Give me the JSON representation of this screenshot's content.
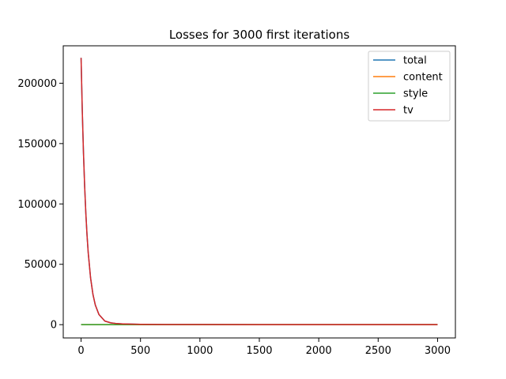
{
  "chart_data": {
    "type": "line",
    "title": "Losses for 3000 first iterations",
    "xlabel": "",
    "ylabel": "",
    "xlim": [
      -150,
      3150
    ],
    "ylim": [
      -11000,
      231000
    ],
    "x_ticks": [
      0,
      500,
      1000,
      1500,
      2000,
      2500,
      3000
    ],
    "y_ticks": [
      0,
      50000,
      100000,
      150000,
      200000
    ],
    "legend_position": "top-right",
    "grid": false,
    "series": [
      {
        "name": "total",
        "color": "#1f77b4",
        "x": [
          0,
          10,
          20,
          30,
          40,
          50,
          60,
          80,
          100,
          120,
          150,
          200,
          250,
          300,
          350,
          400,
          500,
          600,
          700,
          800,
          1000,
          1500,
          2000,
          2500,
          3000
        ],
        "y": [
          221000,
          177700,
          142900,
          114900,
          92400,
          74300,
          59800,
          38700,
          25000,
          16200,
          8500,
          3000,
          1500,
          900,
          650,
          500,
          300,
          200,
          150,
          120,
          90,
          60,
          50,
          40,
          35
        ]
      },
      {
        "name": "content",
        "color": "#ff7f0e",
        "x": [
          0,
          500,
          1000,
          1500,
          2000,
          2500,
          3000
        ],
        "y": [
          0,
          0,
          0,
          0,
          0,
          0,
          0
        ]
      },
      {
        "name": "style",
        "color": "#2ca02c",
        "x": [
          0,
          500,
          1000,
          1500,
          2000,
          2500,
          3000
        ],
        "y": [
          0,
          0,
          0,
          0,
          0,
          0,
          0
        ]
      },
      {
        "name": "tv",
        "color": "#d62728",
        "x": [
          0,
          10,
          20,
          30,
          40,
          50,
          60,
          80,
          100,
          120,
          150,
          200,
          250,
          300,
          350,
          400,
          500,
          600,
          700,
          800,
          1000,
          1500,
          2000,
          2500,
          3000
        ],
        "y": [
          221000,
          177700,
          142900,
          114900,
          92400,
          74300,
          59800,
          38700,
          25000,
          16200,
          8500,
          3000,
          1500,
          900,
          650,
          500,
          300,
          200,
          150,
          120,
          90,
          60,
          50,
          40,
          35
        ]
      }
    ]
  }
}
